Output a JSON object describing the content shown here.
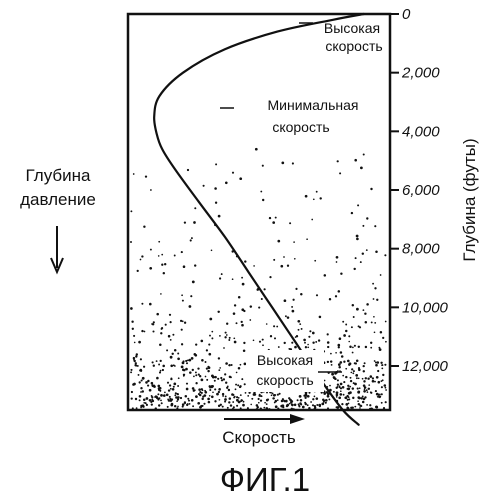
{
  "figure": {
    "caption": "ФИГ.1",
    "left_label": {
      "line1": "Глубина",
      "line2": "давление"
    },
    "bottom_label": "Скорость",
    "right_axis_label": "Глубина (футы)",
    "annotations": {
      "high_speed_top": [
        "Высокая",
        "скорость"
      ],
      "min_speed": [
        "Минимальная",
        "скорость"
      ],
      "high_speed_bottom": [
        "Высокая",
        "скорость"
      ]
    }
  },
  "chart_data": {
    "type": "line",
    "title": "",
    "xlabel": "Скорость",
    "ylabel": "Глубина (футы)",
    "y_axis_side": "right",
    "y_inverted": true,
    "ylim": [
      0,
      14000
    ],
    "y_ticks": [
      0,
      2000,
      4000,
      6000,
      8000,
      10000,
      12000
    ],
    "y_tick_labels": [
      "0",
      "2,000",
      "4,000",
      "6,000",
      "8,000",
      "10,000",
      "12,000"
    ],
    "series": [
      {
        "depth": [
          0,
          200,
          600,
          1200,
          2000,
          2800,
          3500,
          4100,
          4600,
          5300,
          6400,
          7600,
          8800,
          10000,
          11200,
          12400,
          13500,
          14000
        ],
        "speed": [
          0.9,
          0.78,
          0.57,
          0.37,
          0.21,
          0.12,
          0.1,
          0.11,
          0.13,
          0.18,
          0.27,
          0.37,
          0.46,
          0.55,
          0.64,
          0.73,
          0.82,
          0.88
        ]
      }
    ],
    "background_dots_from_depth": 4600,
    "grid": false
  }
}
